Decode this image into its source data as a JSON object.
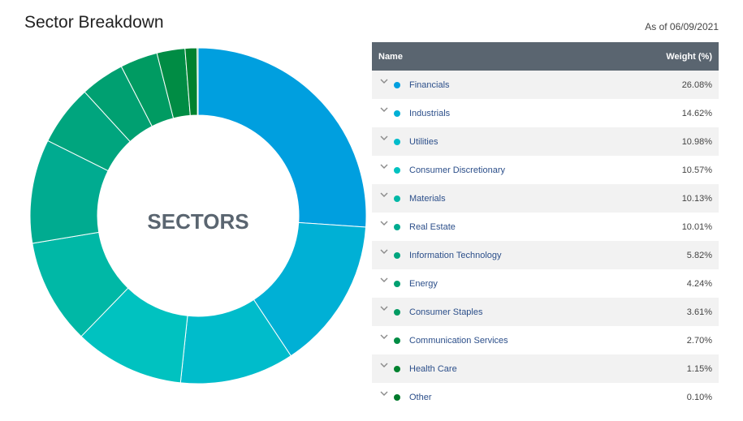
{
  "header": {
    "title": "Sector Breakdown",
    "as_of": "As of 06/09/2021"
  },
  "table": {
    "col_name": "Name",
    "col_weight": "Weight (%)"
  },
  "chart_data": {
    "type": "pie",
    "center_label": "SECTORS",
    "categories": [
      "Financials",
      "Industrials",
      "Utilities",
      "Consumer Discretionary",
      "Materials",
      "Real Estate",
      "Information Technology",
      "Energy",
      "Consumer Staples",
      "Communication Services",
      "Health Care",
      "Other"
    ],
    "values": [
      26.08,
      14.62,
      10.98,
      10.57,
      10.13,
      10.01,
      5.82,
      4.24,
      3.61,
      2.7,
      1.15,
      0.1
    ],
    "labels": [
      "26.08%",
      "14.62%",
      "10.98%",
      "10.57%",
      "10.13%",
      "10.01%",
      "5.82%",
      "4.24%",
      "3.61%",
      "2.70%",
      "1.15%",
      "0.10%"
    ],
    "colors": [
      "#009fdf",
      "#00b0d5",
      "#00bccb",
      "#00c2c0",
      "#00b8a6",
      "#00ab90",
      "#00a57e",
      "#00a071",
      "#009b62",
      "#008c44",
      "#00822f",
      "#007a2c"
    ]
  }
}
